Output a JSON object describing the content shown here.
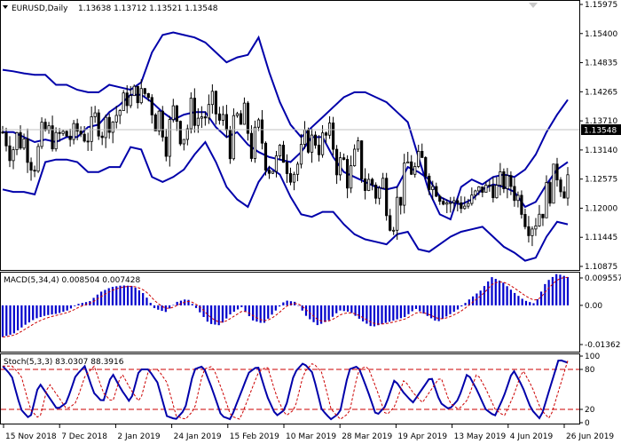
{
  "header": {
    "symbol": "EURUSD,Daily",
    "ohlc": "1.13638 1.13712 1.13521 1.13548"
  },
  "price_axis": {
    "labels": [
      "1.15975",
      "1.15400",
      "1.14835",
      "1.14265",
      "1.13710",
      "1.13140",
      "1.12575",
      "1.12000",
      "1.11445",
      "1.10875"
    ],
    "current": "1.13548",
    "current_bg": "#000000"
  },
  "macd_panel": {
    "title": "MACD(5,34,4) 0.008504 0.007428",
    "labels": [
      "0.009557",
      "0.00",
      "-0.01362"
    ]
  },
  "stoch_panel": {
    "title": "Stoch(5,3,3) 83.0307 88.3916",
    "labels": [
      "100",
      "80",
      "20",
      "0"
    ],
    "levels": [
      80,
      20
    ],
    "level_color": "#cc0000"
  },
  "time_axis": {
    "labels": [
      "15 Nov 2018",
      "7 Dec 2018",
      "2 Jan 2019",
      "24 Jan 2019",
      "15 Feb 2019",
      "10 Mar 2019",
      "28 Mar 2019",
      "19 Apr 2019",
      "13 May 2019",
      "4 Jun 2019",
      "26 Jun 2019"
    ]
  },
  "colors": {
    "bollinger": "#0000aa",
    "macd_hist": "#0000cc",
    "macd_signal": "#cc0000",
    "stoch_main": "#0000aa",
    "stoch_signal": "#cc0000",
    "candle": "#000000"
  },
  "chart_data": [
    {
      "type": "candlestick",
      "title": "EURUSD,Daily",
      "ylim": [
        1.1087,
        1.1618
      ],
      "bollinger_upper": [
        1.1485,
        1.1482,
        1.1478,
        1.1475,
        1.1475,
        1.1455,
        1.1455,
        1.1445,
        1.144,
        1.144,
        1.1455,
        1.145,
        1.1445,
        1.146,
        1.152,
        1.1555,
        1.156,
        1.1555,
        1.155,
        1.154,
        1.152,
        1.15,
        1.151,
        1.1515,
        1.155,
        1.148,
        1.142,
        1.1375,
        1.135,
        1.137,
        1.139,
        1.141,
        1.143,
        1.144,
        1.144,
        1.143,
        1.142,
        1.14,
        1.138,
        1.131,
        1.124,
        1.1195,
        1.1185,
        1.125,
        1.1265,
        1.1255,
        1.127,
        1.1275,
        1.127,
        1.1285,
        1.1315,
        1.136,
        1.1395,
        1.1425
      ],
      "bollinger_middle": [
        1.136,
        1.136,
        1.135,
        1.134,
        1.1345,
        1.134,
        1.135,
        1.135,
        1.137,
        1.1375,
        1.14,
        1.1415,
        1.1435,
        1.1435,
        1.142,
        1.14,
        1.1385,
        1.1395,
        1.14,
        1.14,
        1.137,
        1.135,
        1.136,
        1.1335,
        1.132,
        1.131,
        1.1305,
        1.13,
        1.132,
        1.135,
        1.135,
        1.131,
        1.128,
        1.127,
        1.126,
        1.125,
        1.1245,
        1.125,
        1.129,
        1.128,
        1.1265,
        1.123,
        1.122,
        1.1215,
        1.1225,
        1.1245,
        1.1255,
        1.125,
        1.124,
        1.121,
        1.122,
        1.1255,
        1.1285,
        1.13
      ],
      "bollinger_lower": [
        1.1245,
        1.124,
        1.124,
        1.1235,
        1.13,
        1.1305,
        1.1305,
        1.13,
        1.128,
        1.128,
        1.129,
        1.129,
        1.133,
        1.1325,
        1.127,
        1.126,
        1.127,
        1.1285,
        1.1315,
        1.134,
        1.13,
        1.125,
        1.1225,
        1.121,
        1.126,
        1.129,
        1.1275,
        1.123,
        1.1195,
        1.119,
        1.12,
        1.12,
        1.1175,
        1.1155,
        1.1145,
        1.114,
        1.1135,
        1.1155,
        1.116,
        1.1125,
        1.112,
        1.1135,
        1.115,
        1.116,
        1.1165,
        1.117,
        1.115,
        1.113,
        1.1118,
        1.1102,
        1.1108,
        1.115,
        1.118,
        1.1175
      ]
    },
    {
      "type": "bar",
      "title": "MACD(5,34,4)",
      "ylim": [
        -0.01362,
        0.009557
      ],
      "values": [
        -0.0095,
        -0.0085,
        -0.006,
        -0.004,
        -0.003,
        -0.0025,
        -0.0015,
        0.0005,
        0.0012,
        0.004,
        0.0055,
        0.006,
        0.0058,
        0.0035,
        -0.001,
        -0.002,
        0.001,
        0.002,
        -0.0015,
        -0.0055,
        -0.006,
        -0.0025,
        -0.0005,
        -0.0045,
        -0.0055,
        -0.002,
        0.0015,
        0.001,
        -0.0035,
        -0.006,
        -0.0045,
        -0.0015,
        -0.002,
        -0.0045,
        -0.0065,
        -0.0055,
        -0.0045,
        -0.0035,
        -0.001,
        -0.003,
        -0.005,
        -0.003,
        -0.001,
        0.002,
        0.0045,
        0.0085,
        0.007,
        0.004,
        0.0015,
        0.0005,
        0.007,
        0.0095,
        0.0085
      ]
    },
    {
      "type": "line",
      "title": "Stoch(5,3,3)",
      "ylim": [
        0,
        100
      ],
      "series": [
        {
          "values": [
            85,
            70,
            20,
            5,
            60,
            40,
            20,
            30,
            70,
            85,
            45,
            30,
            75,
            50,
            30,
            80,
            80,
            60,
            10,
            5,
            20,
            80,
            85,
            50,
            10,
            5,
            40,
            75,
            85,
            40,
            10,
            20,
            75,
            90,
            75,
            20,
            5,
            15,
            80,
            85,
            50,
            10,
            25,
            65,
            45,
            30,
            50,
            70,
            30,
            20,
            35,
            75,
            50,
            20,
            10,
            40,
            80,
            55,
            20,
            5,
            50,
            95,
            90
          ]
        }
      ]
    }
  ]
}
